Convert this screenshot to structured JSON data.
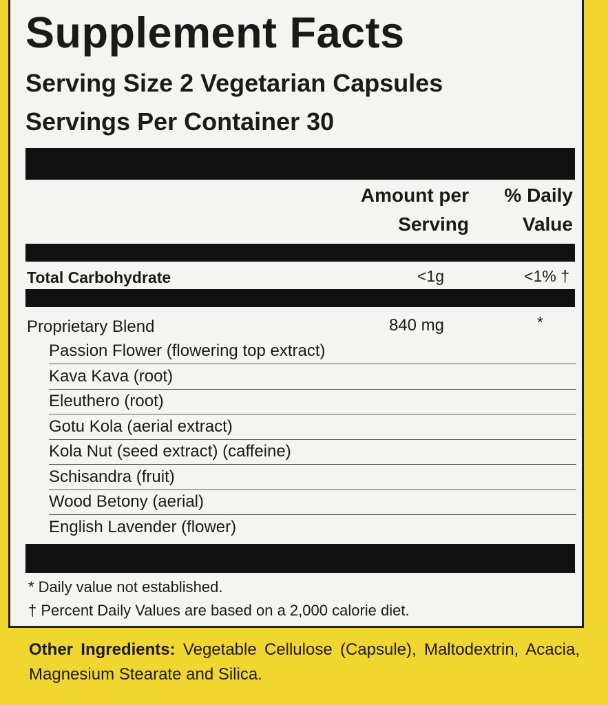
{
  "title": "Supplement Facts",
  "serving_size": "Serving Size 2 Vegetarian Capsules",
  "servings_per_container": "Servings Per Container 30",
  "header": {
    "amount_line1": "Amount per",
    "amount_line2": "Serving",
    "dv_line1": "% Daily",
    "dv_line2": "Value"
  },
  "total_carb": {
    "label": "Total Carbohydrate",
    "amount": "<1g",
    "dv": "<1% †"
  },
  "blend": {
    "label": "Proprietary Blend",
    "amount": "840 mg",
    "dv": "*"
  },
  "blend_items": [
    "Passion Flower (flowering top extract)",
    "Kava Kava (root)",
    "Eleuthero (root)",
    "Gotu Kola (aerial extract)",
    "Kola Nut (seed extract) (caffeine)",
    "Schisandra (fruit)",
    "Wood Betony (aerial)",
    "English Lavender (flower)"
  ],
  "footnotes": [
    "* Daily value not established.",
    "† Percent Daily Values are based on a 2,000 calorie diet."
  ],
  "other_ingredients": {
    "label": "Other Ingredients:",
    "text": " Vegetable Cellulose (Capsule), Maltodextrin, Acacia, Magnesium Stearate and Silica."
  },
  "colors": {
    "background": "#f2d630",
    "panel": "#f4f4f2",
    "bars": "#111111"
  }
}
